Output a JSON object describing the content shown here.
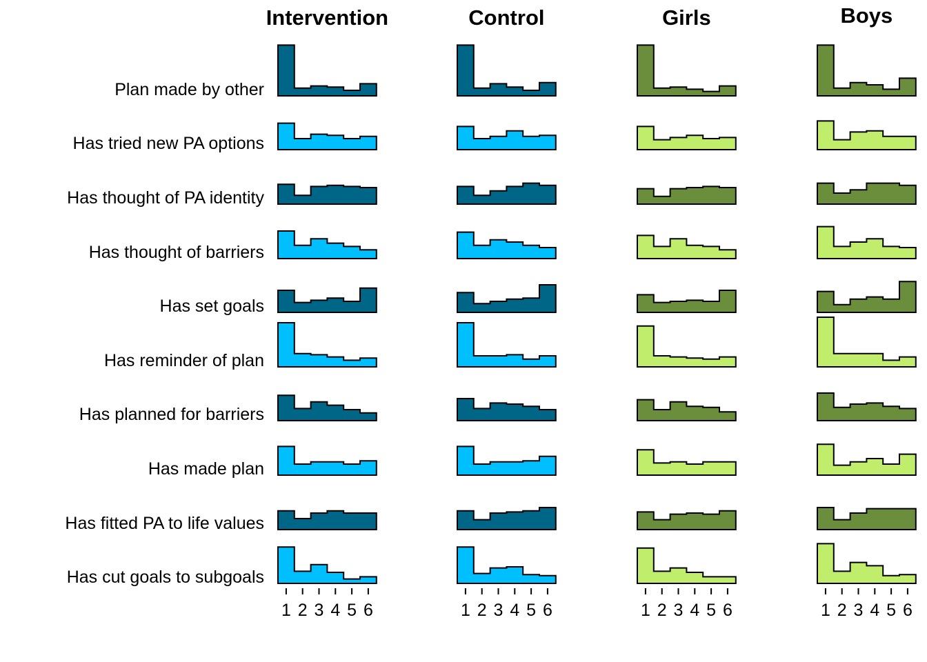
{
  "chart_data": {
    "type": "bar",
    "subtype": "histogram small multiples",
    "x_ticks": [
      "1",
      "2",
      "3",
      "4",
      "5",
      "6"
    ],
    "rows": [
      "Plan made by other",
      "Has tried new PA options",
      "Has thought of PA identity",
      "Has thought of barriers",
      "Has set goals",
      "Has reminder of plan",
      "Has planned for barriers",
      "Has made plan",
      "Has fitted PA to life values",
      "Has cut goals to subgoals"
    ],
    "columns": [
      {
        "title": "Intervention",
        "colors": [
          "#006687",
          "#00BFFF"
        ],
        "series": [
          {
            "name": "Plan made by other",
            "values": [
              0.46,
              0.07,
              0.09,
              0.08,
              0.05,
              0.11
            ]
          },
          {
            "name": "Has tried new PA options",
            "values": [
              0.24,
              0.1,
              0.14,
              0.13,
              0.1,
              0.12
            ]
          },
          {
            "name": "Has thought of PA identity",
            "values": [
              0.18,
              0.08,
              0.16,
              0.17,
              0.16,
              0.15
            ]
          },
          {
            "name": "Has thought of barriers",
            "values": [
              0.25,
              0.12,
              0.18,
              0.14,
              0.11,
              0.08
            ]
          },
          {
            "name": "Has set goals",
            "values": [
              0.2,
              0.09,
              0.11,
              0.13,
              0.1,
              0.22
            ]
          },
          {
            "name": "Has reminder of plan",
            "values": [
              0.4,
              0.12,
              0.11,
              0.09,
              0.06,
              0.08
            ]
          },
          {
            "name": "Has planned for barriers",
            "values": [
              0.23,
              0.11,
              0.17,
              0.14,
              0.1,
              0.07
            ]
          },
          {
            "name": "Has made plan",
            "values": [
              0.26,
              0.1,
              0.12,
              0.12,
              0.1,
              0.13
            ]
          },
          {
            "name": "Has fitted PA to life values",
            "values": [
              0.17,
              0.1,
              0.15,
              0.17,
              0.15,
              0.15
            ]
          },
          {
            "name": "Has cut goals to subgoals",
            "values": [
              0.33,
              0.11,
              0.17,
              0.1,
              0.04,
              0.06
            ]
          }
        ]
      },
      {
        "title": "Control",
        "colors": [
          "#006687",
          "#00BFFF"
        ],
        "series": [
          {
            "name": "Plan made by other",
            "values": [
              0.46,
              0.07,
              0.11,
              0.08,
              0.05,
              0.12
            ]
          },
          {
            "name": "Has tried new PA options",
            "values": [
              0.21,
              0.1,
              0.12,
              0.17,
              0.12,
              0.13
            ]
          },
          {
            "name": "Has thought of PA identity",
            "values": [
              0.16,
              0.08,
              0.12,
              0.16,
              0.19,
              0.17
            ]
          },
          {
            "name": "Has thought of barriers",
            "values": [
              0.24,
              0.12,
              0.17,
              0.15,
              0.12,
              0.1
            ]
          },
          {
            "name": "Has set goals",
            "values": [
              0.18,
              0.08,
              0.1,
              0.12,
              0.13,
              0.25
            ]
          },
          {
            "name": "Has reminder of plan",
            "values": [
              0.4,
              0.1,
              0.1,
              0.11,
              0.07,
              0.1
            ]
          },
          {
            "name": "Has planned for barriers",
            "values": [
              0.2,
              0.11,
              0.16,
              0.15,
              0.13,
              0.1
            ]
          },
          {
            "name": "Has made plan",
            "values": [
              0.26,
              0.1,
              0.12,
              0.12,
              0.13,
              0.17
            ]
          },
          {
            "name": "Has fitted PA to life values",
            "values": [
              0.17,
              0.09,
              0.15,
              0.16,
              0.17,
              0.2
            ]
          },
          {
            "name": "Has cut goals to subgoals",
            "values": [
              0.33,
              0.09,
              0.14,
              0.15,
              0.08,
              0.07
            ]
          }
        ]
      },
      {
        "title": "Girls",
        "colors": [
          "#6B8E3C",
          "#C0EE6C"
        ],
        "series": [
          {
            "name": "Plan made by other",
            "values": [
              0.46,
              0.07,
              0.08,
              0.06,
              0.04,
              0.09
            ]
          },
          {
            "name": "Has tried new PA options",
            "values": [
              0.21,
              0.09,
              0.11,
              0.13,
              0.1,
              0.11
            ]
          },
          {
            "name": "Has thought of PA identity",
            "values": [
              0.14,
              0.07,
              0.14,
              0.15,
              0.16,
              0.15
            ]
          },
          {
            "name": "Has thought of barriers",
            "values": [
              0.21,
              0.11,
              0.18,
              0.12,
              0.11,
              0.08
            ]
          },
          {
            "name": "Has set goals",
            "values": [
              0.16,
              0.09,
              0.1,
              0.11,
              0.1,
              0.2
            ]
          },
          {
            "name": "Has reminder of plan",
            "values": [
              0.37,
              0.1,
              0.09,
              0.08,
              0.07,
              0.09
            ]
          },
          {
            "name": "Has planned for barriers",
            "values": [
              0.19,
              0.1,
              0.17,
              0.13,
              0.12,
              0.08
            ]
          },
          {
            "name": "Has made plan",
            "values": [
              0.23,
              0.11,
              0.12,
              0.1,
              0.12,
              0.12
            ]
          },
          {
            "name": "Has fitted PA to life values",
            "values": [
              0.16,
              0.09,
              0.14,
              0.15,
              0.14,
              0.17
            ]
          },
          {
            "name": "Has cut goals to subgoals",
            "values": [
              0.32,
              0.11,
              0.14,
              0.1,
              0.06,
              0.06
            ]
          }
        ]
      },
      {
        "title": "Boys",
        "colors": [
          "#6B8E3C",
          "#C0EE6C"
        ],
        "series": [
          {
            "name": "Plan made by other",
            "values": [
              0.46,
              0.07,
              0.12,
              0.1,
              0.06,
              0.16
            ]
          },
          {
            "name": "Has tried new PA options",
            "values": [
              0.26,
              0.09,
              0.16,
              0.17,
              0.12,
              0.12
            ]
          },
          {
            "name": "Has thought of PA identity",
            "values": [
              0.19,
              0.1,
              0.13,
              0.19,
              0.19,
              0.17
            ]
          },
          {
            "name": "Has thought of barriers",
            "values": [
              0.29,
              0.11,
              0.15,
              0.18,
              0.11,
              0.1
            ]
          },
          {
            "name": "Has set goals",
            "values": [
              0.19,
              0.07,
              0.12,
              0.14,
              0.12,
              0.28
            ]
          },
          {
            "name": "Has reminder of plan",
            "values": [
              0.45,
              0.12,
              0.12,
              0.12,
              0.06,
              0.09
            ]
          },
          {
            "name": "Has planned for barriers",
            "values": [
              0.25,
              0.12,
              0.15,
              0.16,
              0.13,
              0.11
            ]
          },
          {
            "name": "Has made plan",
            "values": [
              0.28,
              0.09,
              0.12,
              0.15,
              0.1,
              0.19
            ]
          },
          {
            "name": "Has fitted PA to life values",
            "values": [
              0.2,
              0.09,
              0.15,
              0.19,
              0.19,
              0.19
            ]
          },
          {
            "name": "Has cut goals to subgoals",
            "values": [
              0.36,
              0.11,
              0.19,
              0.16,
              0.07,
              0.08
            ]
          }
        ]
      }
    ]
  }
}
